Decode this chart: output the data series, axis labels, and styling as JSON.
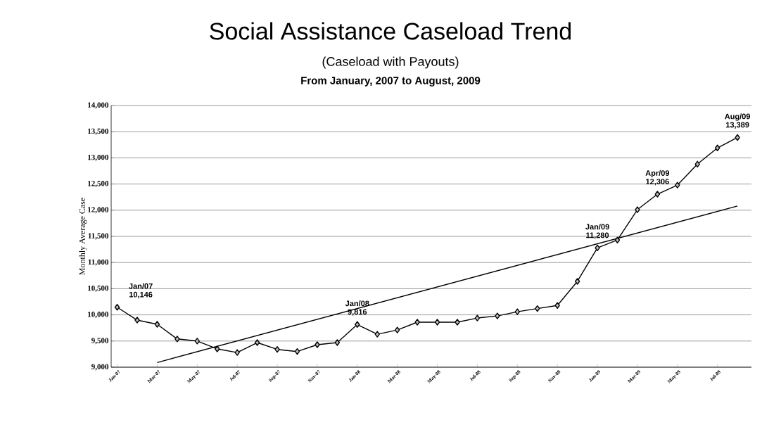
{
  "chart_data": {
    "type": "line",
    "title": "Social Assistance Caseload Trend",
    "subtitle": "(Caseload with Payouts)",
    "ylabel": "Monthly Average Case",
    "categories": [
      "Jan-07",
      null,
      "Mar-07",
      null,
      "May-07",
      null,
      "Jul-07",
      null,
      "Sep-07",
      null,
      "Nov-07",
      null,
      "Jan-08",
      null,
      "Mar-08",
      null,
      "May-08",
      null,
      "Jul-08",
      null,
      "Sep-08",
      null,
      "Nov-08",
      null,
      "Jan-09",
      null,
      "Mar-09",
      null,
      "May-09",
      null,
      "Jul-09",
      null
    ],
    "series": [
      {
        "color": "#000000",
        "marker": "diamond",
        "values": [
          10146,
          9900,
          9820,
          9540,
          9500,
          9350,
          9280,
          9470,
          9340,
          9300,
          9430,
          9470,
          9816,
          9630,
          9710,
          9860,
          9860,
          9860,
          9940,
          9980,
          10060,
          10120,
          10180,
          10640,
          11280,
          11430,
          12010,
          12306,
          12480,
          12880,
          13190,
          13389
        ]
      },
      {
        "color": "#000000",
        "marker": "none",
        "values": [
          null,
          null,
          9090,
          null,
          null,
          null,
          null,
          null,
          null,
          null,
          null,
          null,
          null,
          null,
          null,
          null,
          null,
          null,
          null,
          null,
          null,
          null,
          null,
          null,
          null,
          null,
          null,
          null,
          null,
          null,
          null,
          12080
        ]
      }
    ],
    "ylim": [
      9000,
      14000
    ],
    "yticks": [
      {
        "value": 9000,
        "label": "9,000"
      },
      {
        "value": 9500,
        "label": "9,500"
      },
      {
        "value": 10000,
        "label": "10,000"
      },
      {
        "value": 10500,
        "label": "10,500"
      },
      {
        "value": 11000,
        "label": "11,000"
      },
      {
        "value": 11500,
        "label": "11,500"
      },
      {
        "value": 12000,
        "label": "12,000"
      },
      {
        "value": 12500,
        "label": "12,500"
      },
      {
        "value": 13000,
        "label": "13,000"
      },
      {
        "value": 13500,
        "label": "13,500"
      },
      {
        "value": 14000,
        "label": "14,000"
      }
    ],
    "grid": "y",
    "annotations": [
      "From January, 2007 to August, 2009",
      {
        "text": "Jan/07 10,146",
        "x": "Jan-07",
        "y": 10146
      },
      {
        "text": "Jan/08 9,816",
        "x": "Jan-08",
        "y": 9816
      },
      {
        "text": "Jan/09 11,280",
        "x": "Jan-09",
        "y": 11280
      },
      {
        "text": "Apr/09 12,306",
        "y": 12306
      },
      {
        "text": "Aug/09 13,389",
        "y": 13389
      }
    ]
  }
}
